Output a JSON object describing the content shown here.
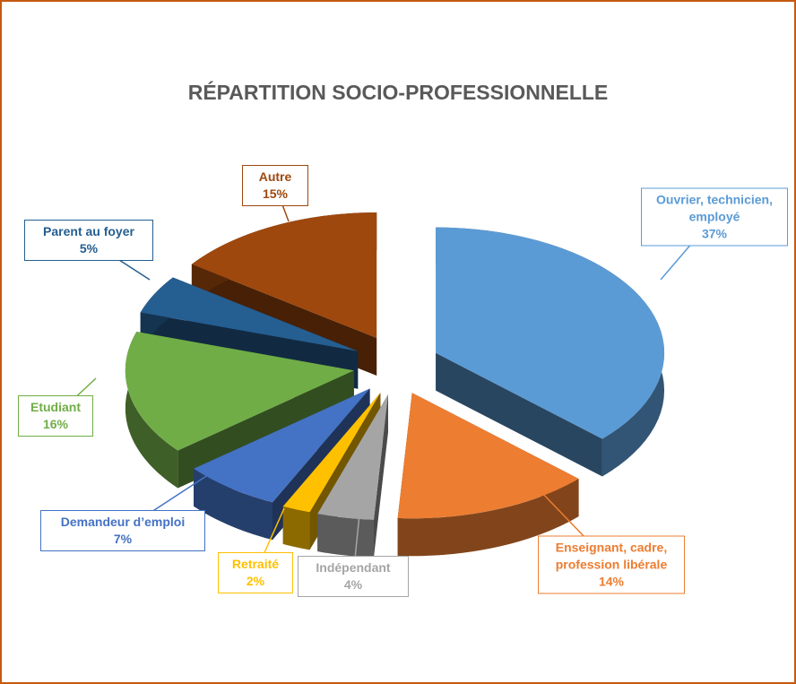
{
  "chart_data": {
    "type": "pie3d",
    "title": "RÉPARTITION SOCIO-PROFESSIONNELLE",
    "categories": [
      "Ouvrier, technicien, employé",
      "Enseignant, cadre, profession libérale",
      "Indépendant",
      "Retraité",
      "Demandeur d’emploi",
      "Etudiant",
      "Parent au foyer",
      "Autre"
    ],
    "values": [
      37,
      14,
      4,
      2,
      7,
      16,
      5,
      15
    ],
    "value_labels": [
      "37%",
      "14%",
      "4%",
      "2%",
      "7%",
      "16%",
      "5%",
      "15%"
    ],
    "colors": [
      "#5b9bd5",
      "#ed7d31",
      "#a5a5a5",
      "#ffc000",
      "#4472c4",
      "#70ad47",
      "#255e91",
      "#9e480e"
    ]
  }
}
